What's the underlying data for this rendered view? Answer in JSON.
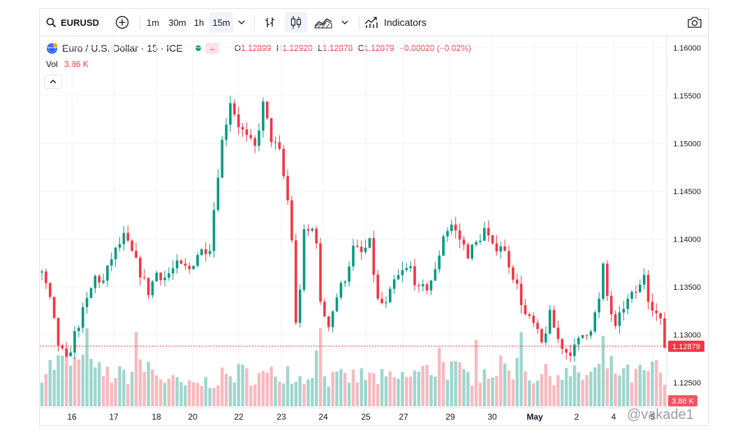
{
  "toolbar": {
    "symbol": "EURUSD",
    "intervals": [
      "1m",
      "30m",
      "1h",
      "15m"
    ],
    "active_interval": "15m",
    "indicators_label": "Indicators",
    "icons": [
      "search-icon",
      "add-symbol-icon",
      "chevron-down-icon",
      "bar-chart-icon",
      "candlestick-icon",
      "area-chart-icon",
      "chevron-down-icon",
      "indicators-icon",
      "camera-icon"
    ]
  },
  "legend": {
    "title": "Euro / U.S. Dollar · 15 · ICE",
    "open_label": "O",
    "open": "1.12899",
    "high_label": "H",
    "high": "1.12920",
    "low_label": "L",
    "low": "1.12878",
    "close_label": "C",
    "close": "1.12879",
    "change": "−0.00020 (−0.02%)"
  },
  "volume": {
    "label": "Vol",
    "value": "3.86 K"
  },
  "price_tag": "1.12879",
  "volume_tag": "3.86 K",
  "watermark": "@vakade1",
  "colors": {
    "up": "#089981",
    "down": "#f23645",
    "up_volume": "#7dc8bd",
    "down_volume": "#f4a3a9",
    "grid": "#f0f3fa",
    "price_line": "#f23645"
  },
  "chart_data": {
    "type": "candlestick",
    "symbol": "EURUSD",
    "y_ticks": [
      1.125,
      1.13,
      1.135,
      1.14,
      1.145,
      1.15,
      1.155,
      1.16
    ],
    "y_tick_labels": [
      "1.12500",
      "1.13000",
      "1.13500",
      "1.14000",
      "1.14500",
      "1.15000",
      "1.15500",
      "1.16000"
    ],
    "ylim": [
      1.1225,
      1.1612
    ],
    "x_labels": [
      "16",
      "17",
      "18",
      "20",
      "22",
      "23",
      "24",
      "25",
      "27",
      "29",
      "30",
      "May",
      "2",
      "4",
      "5"
    ],
    "last_price": 1.12879,
    "last_volume_k": 3.86,
    "grid": true,
    "price_path": [
      {
        "t": 0,
        "p": 1.1365
      },
      {
        "t": 2,
        "p": 1.1335
      },
      {
        "t": 4,
        "p": 1.129
      },
      {
        "t": 6,
        "p": 1.1272
      },
      {
        "t": 8,
        "p": 1.13
      },
      {
        "t": 11,
        "p": 1.1335
      },
      {
        "t": 13,
        "p": 1.136
      },
      {
        "t": 15,
        "p": 1.1355
      },
      {
        "t": 17,
        "p": 1.138
      },
      {
        "t": 20,
        "p": 1.1402
      },
      {
        "t": 22,
        "p": 1.1385
      },
      {
        "t": 24,
        "p": 1.1365
      },
      {
        "t": 26,
        "p": 1.1345
      },
      {
        "t": 28,
        "p": 1.1365
      },
      {
        "t": 30,
        "p": 1.136
      },
      {
        "t": 33,
        "p": 1.1372
      },
      {
        "t": 36,
        "p": 1.1368
      },
      {
        "t": 38,
        "p": 1.1385
      },
      {
        "t": 41,
        "p": 1.1393
      },
      {
        "t": 43,
        "p": 1.147
      },
      {
        "t": 44,
        "p": 1.1502
      },
      {
        "t": 46,
        "p": 1.1545
      },
      {
        "t": 48,
        "p": 1.152
      },
      {
        "t": 50,
        "p": 1.1505
      },
      {
        "t": 52,
        "p": 1.1495
      },
      {
        "t": 54,
        "p": 1.154
      },
      {
        "t": 56,
        "p": 1.1505
      },
      {
        "t": 58,
        "p": 1.149
      },
      {
        "t": 60,
        "p": 1.144
      },
      {
        "t": 61,
        "p": 1.14
      },
      {
        "t": 62,
        "p": 1.131
      },
      {
        "t": 63,
        "p": 1.135
      },
      {
        "t": 64,
        "p": 1.1405
      },
      {
        "t": 66,
        "p": 1.141
      },
      {
        "t": 67,
        "p": 1.14
      },
      {
        "t": 68,
        "p": 1.133
      },
      {
        "t": 70,
        "p": 1.1312
      },
      {
        "t": 72,
        "p": 1.134
      },
      {
        "t": 74,
        "p": 1.136
      },
      {
        "t": 76,
        "p": 1.139
      },
      {
        "t": 78,
        "p": 1.1385
      },
      {
        "t": 80,
        "p": 1.1395
      },
      {
        "t": 82,
        "p": 1.1335
      },
      {
        "t": 84,
        "p": 1.133
      },
      {
        "t": 86,
        "p": 1.1355
      },
      {
        "t": 88,
        "p": 1.1365
      },
      {
        "t": 90,
        "p": 1.137
      },
      {
        "t": 92,
        "p": 1.1345
      },
      {
        "t": 94,
        "p": 1.135
      },
      {
        "t": 96,
        "p": 1.1365
      },
      {
        "t": 98,
        "p": 1.1405
      },
      {
        "t": 100,
        "p": 1.1415
      },
      {
        "t": 102,
        "p": 1.14
      },
      {
        "t": 104,
        "p": 1.1385
      },
      {
        "t": 106,
        "p": 1.1395
      },
      {
        "t": 108,
        "p": 1.141
      },
      {
        "t": 110,
        "p": 1.139
      },
      {
        "t": 112,
        "p": 1.1395
      },
      {
        "t": 114,
        "p": 1.1375
      },
      {
        "t": 116,
        "p": 1.135
      },
      {
        "t": 118,
        "p": 1.132
      },
      {
        "t": 120,
        "p": 1.131
      },
      {
        "t": 122,
        "p": 1.129
      },
      {
        "t": 124,
        "p": 1.132
      },
      {
        "t": 126,
        "p": 1.1295
      },
      {
        "t": 128,
        "p": 1.1282
      },
      {
        "t": 130,
        "p": 1.1285
      },
      {
        "t": 132,
        "p": 1.13
      },
      {
        "t": 134,
        "p": 1.1308
      },
      {
        "t": 136,
        "p": 1.1335
      },
      {
        "t": 137,
        "p": 1.137
      },
      {
        "t": 138,
        "p": 1.134
      },
      {
        "t": 140,
        "p": 1.1305
      },
      {
        "t": 142,
        "p": 1.133
      },
      {
        "t": 144,
        "p": 1.134
      },
      {
        "t": 146,
        "p": 1.135
      },
      {
        "t": 147,
        "p": 1.1365
      },
      {
        "t": 148,
        "p": 1.134
      },
      {
        "t": 150,
        "p": 1.1322
      },
      {
        "t": 151,
        "p": 1.1312
      },
      {
        "t": 152,
        "p": 1.1288
      }
    ],
    "volume_path": [
      {
        "t": 0,
        "v": 0.55
      },
      {
        "t": 6,
        "v": 0.7
      },
      {
        "t": 12,
        "v": 0.55
      },
      {
        "t": 18,
        "v": 0.45
      },
      {
        "t": 22,
        "v": 0.5
      },
      {
        "t": 26,
        "v": 0.6
      },
      {
        "t": 30,
        "v": 0.4
      },
      {
        "t": 36,
        "v": 0.3
      },
      {
        "t": 42,
        "v": 0.4
      },
      {
        "t": 48,
        "v": 0.5
      },
      {
        "t": 55,
        "v": 0.45
      },
      {
        "t": 60,
        "v": 0.55
      },
      {
        "t": 64,
        "v": 0.4
      },
      {
        "t": 68,
        "v": 0.85
      },
      {
        "t": 70,
        "v": 0.4
      },
      {
        "t": 78,
        "v": 0.45
      },
      {
        "t": 86,
        "v": 0.4
      },
      {
        "t": 92,
        "v": 0.5
      },
      {
        "t": 98,
        "v": 0.6
      },
      {
        "t": 104,
        "v": 0.45
      },
      {
        "t": 110,
        "v": 0.55
      },
      {
        "t": 116,
        "v": 0.6
      },
      {
        "t": 120,
        "v": 0.45
      },
      {
        "t": 126,
        "v": 0.5
      },
      {
        "t": 132,
        "v": 0.45
      },
      {
        "t": 138,
        "v": 0.6
      },
      {
        "t": 144,
        "v": 0.45
      },
      {
        "t": 150,
        "v": 0.55
      },
      {
        "t": 152,
        "v": 0.35
      }
    ],
    "volume_spikes": [
      {
        "t": 11,
        "v": 1.0
      },
      {
        "t": 23,
        "v": 0.95
      },
      {
        "t": 68,
        "v": 1.0
      },
      {
        "t": 97,
        "v": 0.75
      },
      {
        "t": 106,
        "v": 0.85
      },
      {
        "t": 117,
        "v": 0.95
      },
      {
        "t": 137,
        "v": 0.9
      }
    ]
  }
}
